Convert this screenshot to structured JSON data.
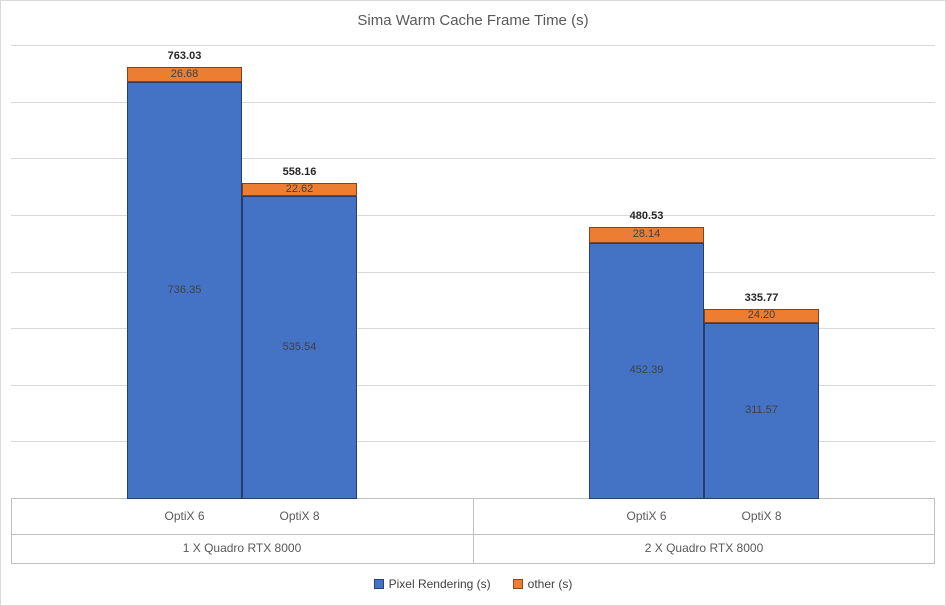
{
  "chart_data": {
    "type": "bar",
    "stacked": true,
    "title": "Sima Warm Cache Frame Time (s)",
    "grid": true,
    "legend_position": "bottom",
    "y_axis": {
      "min": 0,
      "max": 800,
      "gridline_interval": 100,
      "tick_labels_visible": false
    },
    "groups": [
      {
        "label": "1 X Quadro RTX 8000",
        "categories": [
          "OptiX 6",
          "OptiX 8"
        ]
      },
      {
        "label": "2 X Quadro RTX 8000",
        "categories": [
          "OptiX 6",
          "OptiX 8"
        ]
      }
    ],
    "series": [
      {
        "name": "Pixel Rendering (s)",
        "color": "#4472C4",
        "values": [
          736.35,
          535.54,
          452.39,
          311.57
        ]
      },
      {
        "name": "other (s)",
        "color": "#ED7D31",
        "values": [
          26.68,
          22.62,
          28.14,
          24.2
        ]
      }
    ],
    "totals": [
      763.03,
      558.16,
      480.53,
      335.77
    ],
    "colors": {
      "gridline": "#D9D9D9",
      "axis_line": "#BFBFBF",
      "title_text": "#595959",
      "label_text": "#404040",
      "total_text": "#262626",
      "background": "#FFFFFF",
      "border": "#D9D9D9"
    }
  }
}
